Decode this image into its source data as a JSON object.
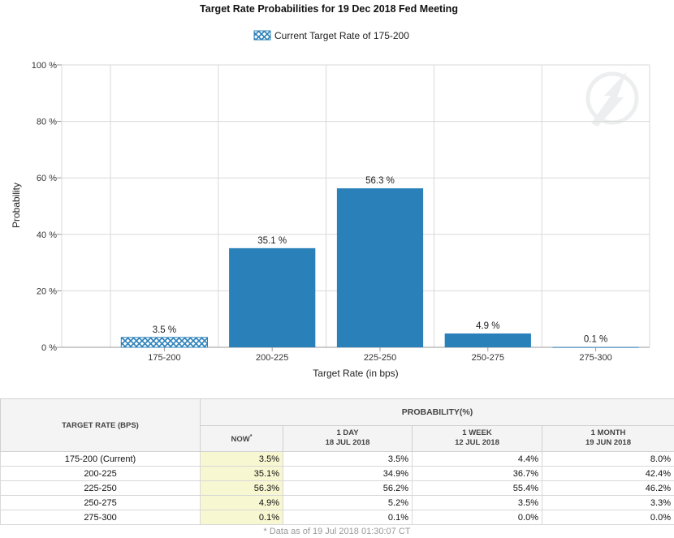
{
  "chart_data": {
    "type": "bar",
    "title": "Target Rate Probabilities for 19 Dec 2018 Fed Meeting",
    "xlabel": "Target Rate (in bps)",
    "ylabel": "Probability",
    "categories": [
      "175-200",
      "200-225",
      "225-250",
      "250-275",
      "275-300"
    ],
    "values": [
      3.5,
      35.1,
      56.3,
      4.9,
      0.1
    ],
    "data_labels": [
      "3.5 %",
      "35.1 %",
      "56.3 %",
      "4.9 %",
      "0.1 %"
    ],
    "ylim": [
      0,
      100
    ],
    "yticks": [
      0,
      20,
      40,
      60,
      80,
      100
    ],
    "ytick_labels": [
      "0 %",
      "20 %",
      "40 %",
      "60 %",
      "80 %",
      "100 %"
    ],
    "highlight_category": "175-200",
    "legend": {
      "label": "Current Target Rate of 175-200",
      "position": "top-center"
    },
    "grid": true,
    "colors": {
      "bar": "#2a80b9",
      "highlight_pattern": "#2a80b9",
      "grid": "#d9d9d9"
    }
  },
  "table": {
    "rate_header": "TARGET RATE (BPS)",
    "prob_header": "PROBABILITY(%)",
    "col_now": "NOW",
    "col_now_marker": "*",
    "col_1day": {
      "label": "1 DAY",
      "date": "18 JUL 2018"
    },
    "col_1week": {
      "label": "1 WEEK",
      "date": "12 JUL 2018"
    },
    "col_1month": {
      "label": "1 MONTH",
      "date": "19 JUN 2018"
    },
    "rows": [
      {
        "rate": "175-200 (Current)",
        "now": "3.5%",
        "day": "3.5%",
        "week": "4.4%",
        "month": "8.0%"
      },
      {
        "rate": "200-225",
        "now": "35.1%",
        "day": "34.9%",
        "week": "36.7%",
        "month": "42.4%"
      },
      {
        "rate": "225-250",
        "now": "56.3%",
        "day": "56.2%",
        "week": "55.4%",
        "month": "46.2%"
      },
      {
        "rate": "250-275",
        "now": "4.9%",
        "day": "5.2%",
        "week": "3.5%",
        "month": "3.3%"
      },
      {
        "rate": "275-300",
        "now": "0.1%",
        "day": "0.1%",
        "week": "0.0%",
        "month": "0.0%"
      }
    ],
    "footnote": "* Data as of 19 Jul 2018 01:30:07 CT"
  }
}
